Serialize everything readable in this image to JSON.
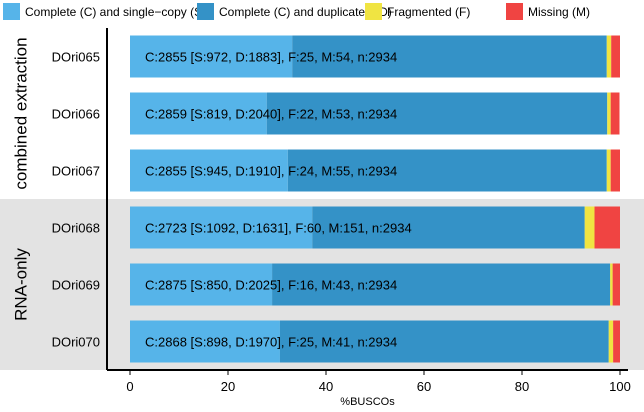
{
  "chart_data": {
    "type": "bar",
    "orientation": "horizontal",
    "stacked": true,
    "xlabel": "%BUSCOs",
    "ylabel": "",
    "xlim": [
      0,
      100
    ],
    "xticks": [
      0,
      20,
      40,
      60,
      80,
      100
    ],
    "grid": false,
    "legend_position": "top",
    "legend": [
      {
        "key": "S",
        "label": "Complete (C) and single−copy (S)",
        "color": "#56b4e9"
      },
      {
        "key": "D",
        "label": "Complete (C) and duplicated (D)",
        "color": "#3492c7"
      },
      {
        "key": "F",
        "label": "Fragmented (F)",
        "color": "#f0e442"
      },
      {
        "key": "M",
        "label": "Missing (M)",
        "color": "#f04442"
      }
    ],
    "groups": [
      {
        "label": "combined extraction",
        "categories": [
          "DOri065",
          "DOri066",
          "DOri067"
        ]
      },
      {
        "label": "RNA-only",
        "categories": [
          "DOri068",
          "DOri069",
          "DOri070"
        ]
      }
    ],
    "categories": [
      "DOri065",
      "DOri066",
      "DOri067",
      "DOri068",
      "DOri069",
      "DOri070"
    ],
    "bar_labels": [
      "C:2855 [S:972, D:1883], F:25, M:54, n:2934",
      "C:2859 [S:819, D:2040], F:22, M:53, n:2934",
      "C:2855 [S:945, D:1910], F:24, M:55, n:2934",
      "C:2723 [S:1092, D:1631], F:60, M:151, n:2934",
      "C:2875 [S:850, D:2025], F:16, M:43, n:2934",
      "C:2868 [S:898, D:1970], F:25, M:41, n:2934"
    ],
    "series": [
      {
        "key": "S",
        "values": [
          33.1,
          27.9,
          32.2,
          37.2,
          29.0,
          30.6
        ]
      },
      {
        "key": "D",
        "values": [
          64.2,
          69.5,
          65.1,
          55.6,
          69.0,
          67.1
        ]
      },
      {
        "key": "F",
        "values": [
          0.9,
          0.7,
          0.8,
          2.0,
          0.5,
          0.9
        ]
      },
      {
        "key": "M",
        "values": [
          1.8,
          1.8,
          1.9,
          5.2,
          1.5,
          1.4
        ]
      }
    ]
  }
}
